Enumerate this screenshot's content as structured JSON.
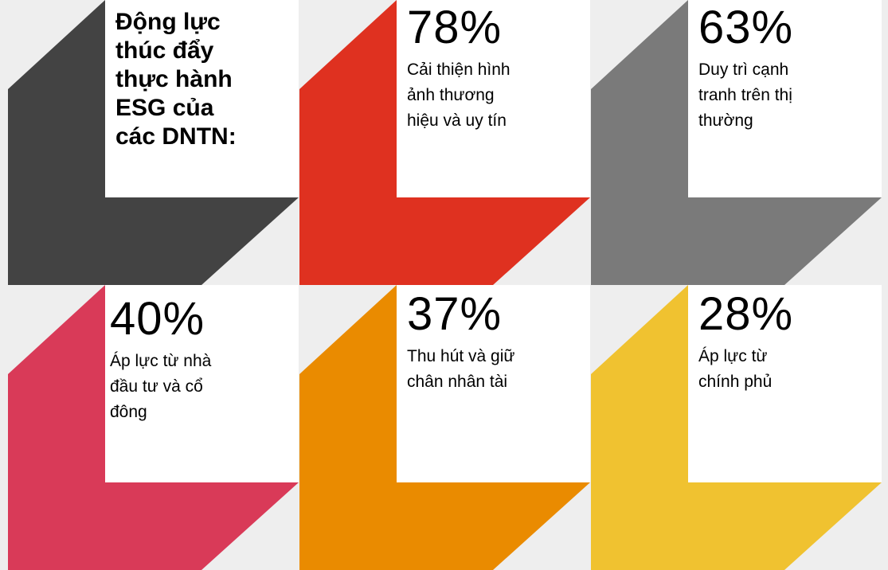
{
  "title": "Động lực thúc đẩy thực hành ESG của các DNTN:",
  "title_lines": [
    "Động lực",
    "thúc đẩy",
    "thực hành",
    "ESG của",
    "các DNTN:"
  ],
  "colors": {
    "title_tile": "#434343",
    "background": "#eeeeee"
  },
  "chart_data": {
    "type": "table",
    "items": [
      {
        "value": 78,
        "label": "78%",
        "desc": [
          "Cải thiện hình",
          "ảnh thương",
          "hiệu và uy tín"
        ],
        "color": "#df3120"
      },
      {
        "value": 63,
        "label": "63%",
        "desc": [
          "Duy trì cạnh",
          "tranh trên thị",
          "thường"
        ],
        "color": "#7a7a7a"
      },
      {
        "value": 40,
        "label": "40%",
        "desc": [
          "Áp lực từ nhà",
          "đầu tư và cổ",
          "đông"
        ],
        "color": "#d93a58"
      },
      {
        "value": 37,
        "label": "37%",
        "desc": [
          "Thu hút và giữ",
          "chân nhân tài"
        ],
        "color": "#ea8b00"
      },
      {
        "value": 28,
        "label": "28%",
        "desc": [
          "Áp lực từ",
          "chính phủ"
        ],
        "color": "#f0c230"
      }
    ]
  }
}
